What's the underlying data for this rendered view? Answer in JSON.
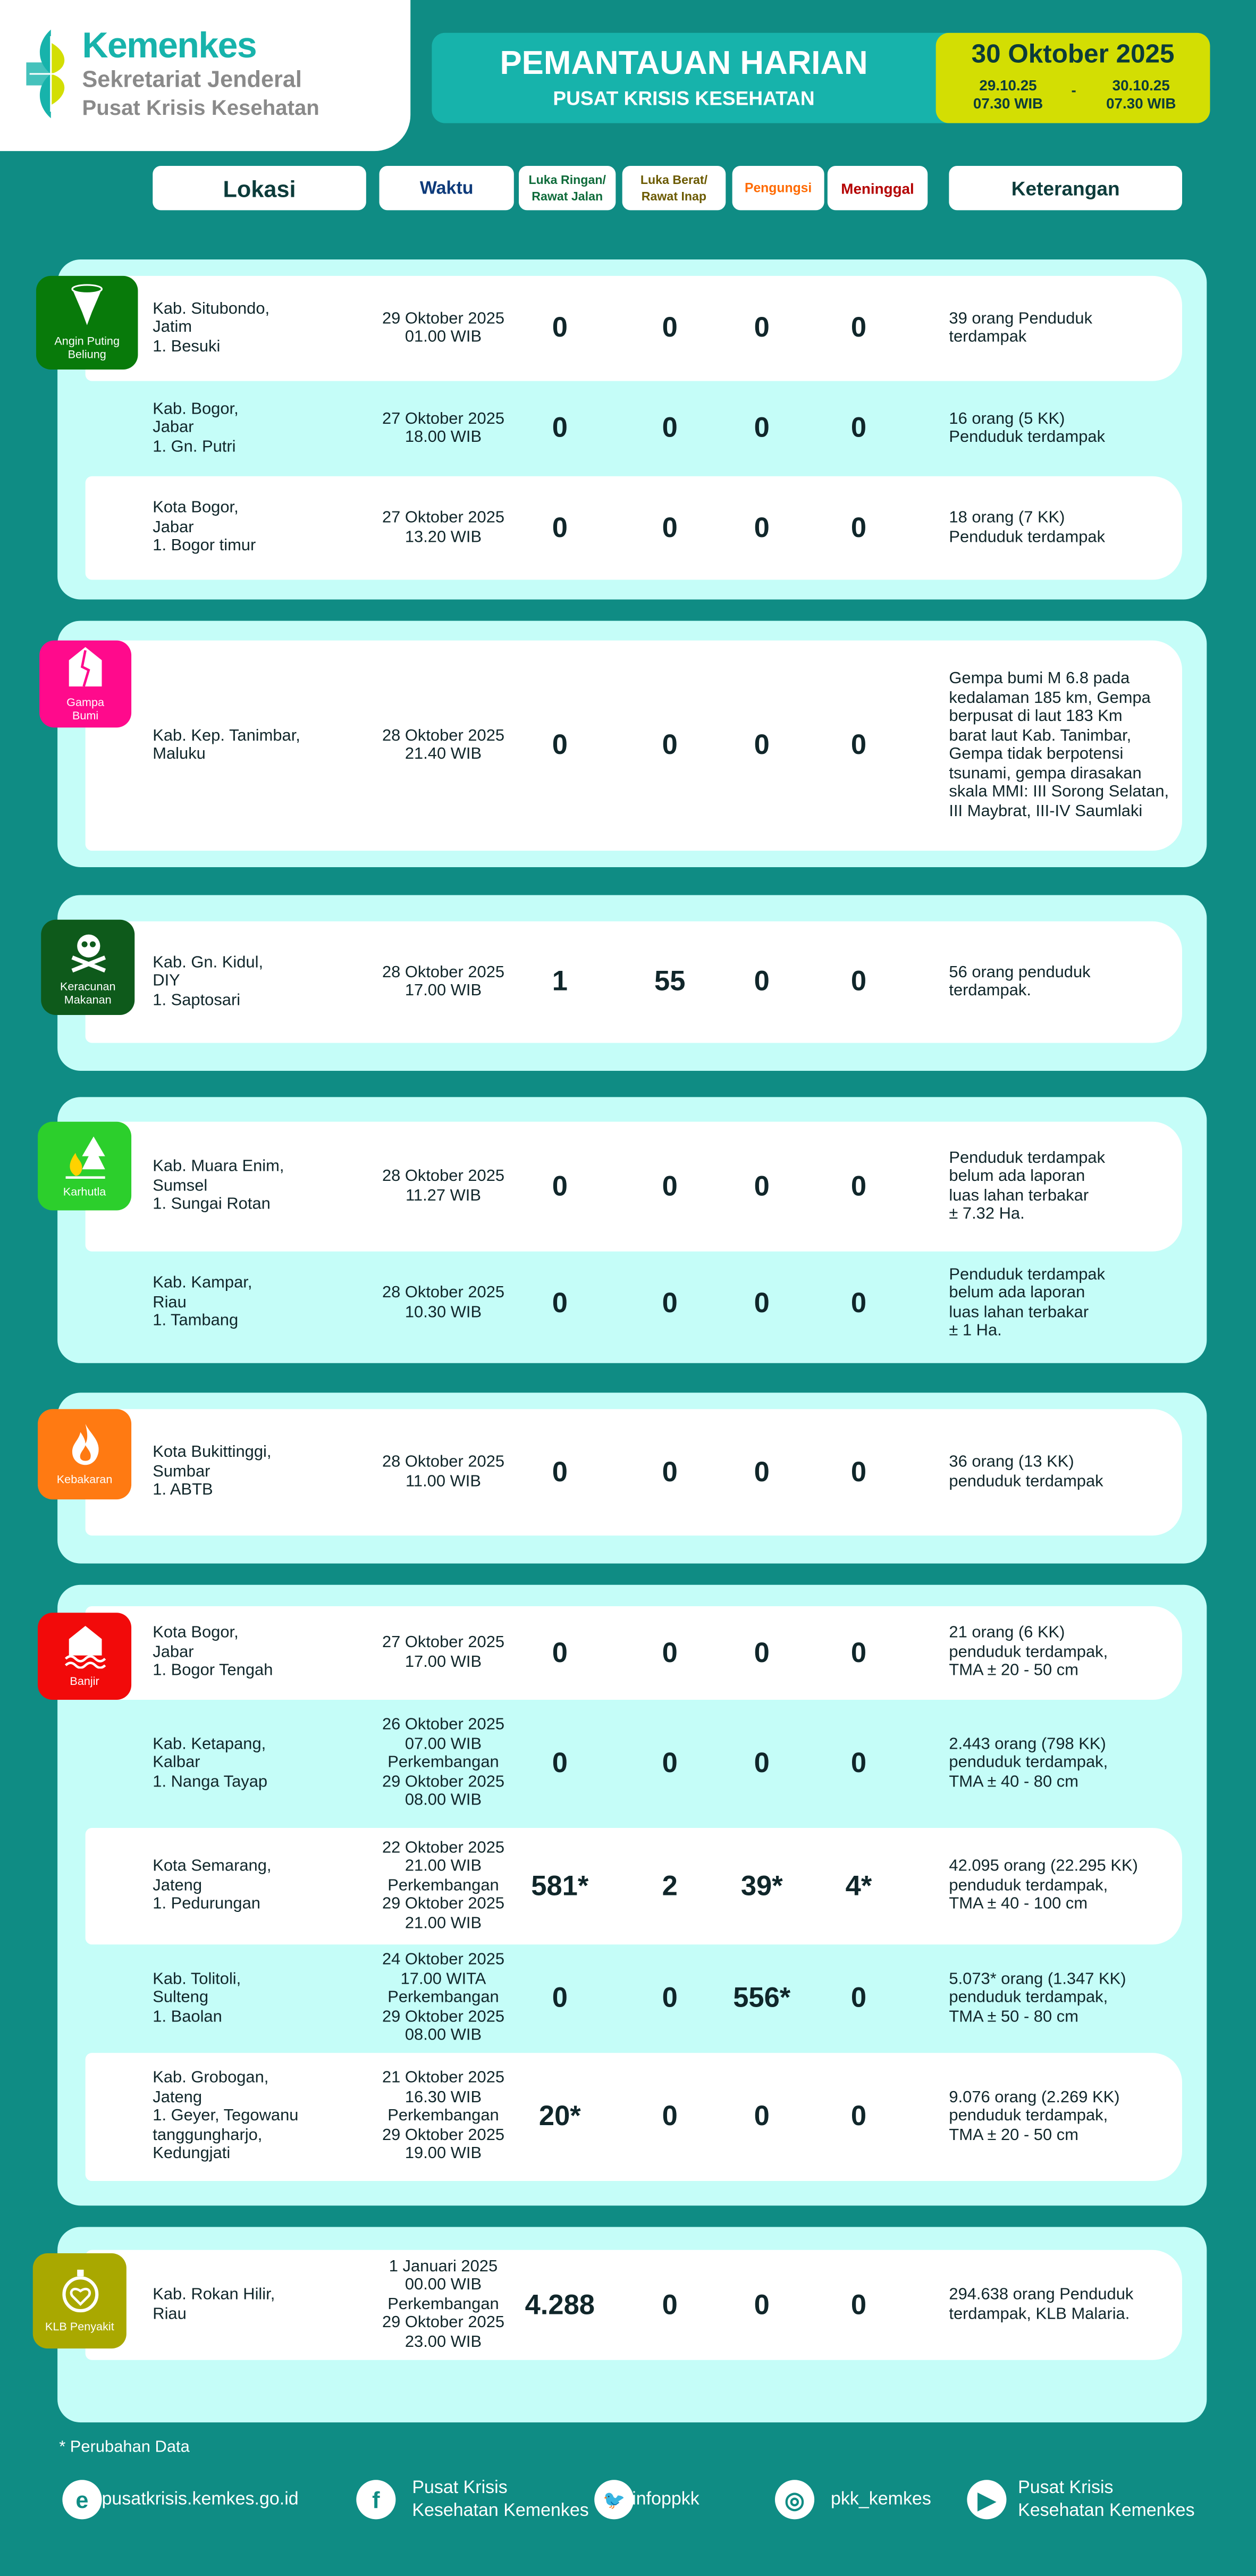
{
  "logo": {
    "name": "Kemenkes",
    "line2": "Sekretariat Jenderal",
    "line3": "Pusat Krisis Kesehatan"
  },
  "banner": {
    "title": "PEMANTAUAN HARIAN",
    "subtitle": "PUSAT KRISIS KESEHATAN",
    "date": "30 Oktober 2025",
    "from": "29.10.25\n07.30 WIB",
    "separator": "-",
    "to": "30.10.25\n07.30 WIB"
  },
  "colors": {
    "background": "#0f8c84",
    "banner": "#17b3ab",
    "date_box": "#d3de03",
    "section": "#c5fdf8"
  },
  "headers": [
    {
      "label": "Lokasi",
      "color": "#0c3b3a"
    },
    {
      "label": "Waktu",
      "color": "#0d3a7a"
    },
    {
      "label": "Luka Ringan/\nRawat Jalan",
      "color": "#0e6b3a"
    },
    {
      "label": "Luka Berat/\nRawat Inap",
      "color": "#6b5a00"
    },
    {
      "label": "Pengungsi",
      "color": "#ff6a00"
    },
    {
      "label": "Meninggal",
      "color": "#b40000"
    },
    {
      "label": "Keterangan",
      "color": "#0c3b3a"
    }
  ],
  "sections": [
    {
      "category": "Angin Puting\nBeliung",
      "icon": "tornado-icon",
      "color": "#087a0a",
      "rows": [
        {
          "lokasi": "Kab. Situbondo,\nJatim\n1. Besuki",
          "waktu": "29 Oktober 2025\n01.00 WIB",
          "luka_ringan": "0",
          "luka_berat": "0",
          "pengungsi": "0",
          "meninggal": "0",
          "keterangan": "39 orang Penduduk\nterdampak"
        },
        {
          "lokasi": "Kab. Bogor,\nJabar\n1. Gn. Putri",
          "waktu": "27 Oktober 2025\n18.00 WIB",
          "luka_ringan": "0",
          "luka_berat": "0",
          "pengungsi": "0",
          "meninggal": "0",
          "keterangan": "16 orang (5 KK)\nPenduduk terdampak"
        },
        {
          "lokasi": "Kota Bogor,\nJabar\n1. Bogor timur",
          "waktu": "27 Oktober 2025\n13.20 WIB",
          "luka_ringan": "0",
          "luka_berat": "0",
          "pengungsi": "0",
          "meninggal": "0",
          "keterangan": "18 orang (7 KK)\nPenduduk terdampak"
        }
      ]
    },
    {
      "category": "Gampa\nBumi",
      "icon": "earthquake-house-icon",
      "color": "#ff0a8c",
      "rows": [
        {
          "lokasi": "Kab. Kep. Tanimbar,\nMaluku",
          "waktu": "28 Oktober 2025\n21.40 WIB",
          "luka_ringan": "0",
          "luka_berat": "0",
          "pengungsi": "0",
          "meninggal": "0",
          "keterangan": "Gempa bumi M 6.8 pada\nkedalaman 185 km, Gempa\nberpusat di laut 183 Km\nbarat laut Kab. Tanimbar,\nGempa tidak berpotensi\ntsunami, gempa dirasakan\nskala MMI: III Sorong Selatan,\nIII Maybrat, III-IV Saumlaki"
        }
      ]
    },
    {
      "category": "Keracunan\nMakanan",
      "icon": "skull-crossbones-icon",
      "color": "#0e5a1b",
      "rows": [
        {
          "lokasi": "Kab. Gn. Kidul,\nDIY\n1. Saptosari",
          "waktu": "28 Oktober 2025\n17.00 WIB",
          "luka_ringan": "1",
          "luka_berat": "55",
          "pengungsi": "0",
          "meninggal": "0",
          "keterangan": "56 orang penduduk\nterdampak."
        }
      ]
    },
    {
      "category": "Karhutla",
      "icon": "forest-fire-icon",
      "color": "#2ccf2c",
      "rows": [
        {
          "lokasi": "Kab. Muara Enim,\nSumsel\n1. Sungai Rotan",
          "waktu": "28 Oktober 2025\n11.27 WIB",
          "luka_ringan": "0",
          "luka_berat": "0",
          "pengungsi": "0",
          "meninggal": "0",
          "keterangan": "Penduduk terdampak\nbelum ada laporan\nluas lahan terbakar\n ± 7.32 Ha."
        },
        {
          "lokasi": "Kab. Kampar,\nRiau\n1. Tambang",
          "waktu": "28 Oktober 2025\n10.30 WIB",
          "luka_ringan": "0",
          "luka_berat": "0",
          "pengungsi": "0",
          "meninggal": "0",
          "keterangan": "Penduduk terdampak\nbelum ada laporan\nluas lahan terbakar\n ± 1 Ha."
        }
      ]
    },
    {
      "category": "Kebakaran",
      "icon": "fire-icon",
      "color": "#ff7a12",
      "rows": [
        {
          "lokasi": "Kota Bukittinggi,\nSumbar\n1. ABTB",
          "waktu": "28 Oktober 2025\n11.00 WIB",
          "luka_ringan": "0",
          "luka_berat": "0",
          "pengungsi": "0",
          "meninggal": "0",
          "keterangan": "36 orang (13 KK)\npenduduk terdampak"
        }
      ]
    },
    {
      "category": "Banjir",
      "icon": "flood-house-icon",
      "color": "#f20a0a",
      "rows": [
        {
          "lokasi": "Kota Bogor,\nJabar\n1. Bogor Tengah",
          "waktu": "27 Oktober 2025\n17.00 WIB",
          "luka_ringan": "0",
          "luka_berat": "0",
          "pengungsi": "0",
          "meninggal": "0",
          "keterangan": "21 orang (6 KK)\npenduduk terdampak,\nTMA ± 20 - 50 cm"
        },
        {
          "lokasi": "Kab. Ketapang,\nKalbar\n1. Nanga Tayap",
          "waktu": "26 Oktober 2025\n07.00 WIB\nPerkembangan\n29 Oktober 2025\n08.00 WIB",
          "luka_ringan": "0",
          "luka_berat": "0",
          "pengungsi": "0",
          "meninggal": "0",
          "keterangan": "2.443 orang (798 KK)\npenduduk terdampak,\nTMA ± 40 - 80 cm"
        },
        {
          "lokasi": "Kota Semarang,\nJateng\n1. Pedurungan",
          "waktu": "22 Oktober 2025\n21.00 WIB\nPerkembangan\n29 Oktober 2025\n21.00 WIB",
          "luka_ringan": "581*",
          "luka_berat": "2",
          "pengungsi": "39*",
          "meninggal": "4*",
          "keterangan": "42.095 orang (22.295 KK)\npenduduk terdampak,\nTMA ± 40 - 100 cm"
        },
        {
          "lokasi": "Kab. Tolitoli,\nSulteng\n1. Baolan",
          "waktu": "24 Oktober 2025\n17.00 WITA\nPerkembangan\n29 Oktober 2025\n08.00 WIB",
          "luka_ringan": "0",
          "luka_berat": "0",
          "pengungsi": "556*",
          "meninggal": "0",
          "keterangan": "5.073* orang (1.347 KK)\npenduduk terdampak,\nTMA ± 50 - 80 cm"
        },
        {
          "lokasi": "Kab. Grobogan,\nJateng\n1. Geyer, Tegowanu\n    tanggungharjo,\n    Kedungjati",
          "waktu": "21 Oktober 2025\n16.30 WIB\nPerkembangan\n29 Oktober 2025\n19.00 WIB",
          "luka_ringan": "20*",
          "luka_berat": "0",
          "pengungsi": "0",
          "meninggal": "0",
          "keterangan": "9.076 orang (2.269 KK)\npenduduk terdampak,\nTMA ± 20 - 50 cm"
        }
      ]
    },
    {
      "category": "KLB Penyakit",
      "icon": "stopwatch-heart-icon",
      "color": "#a9a800",
      "rows": [
        {
          "lokasi": "Kab. Rokan Hilir,\nRiau",
          "waktu": "1 Januari 2025\n00.00 WIB\nPerkembangan\n29 Oktober 2025\n23.00 WIB",
          "luka_ringan": "4.288",
          "luka_berat": "0",
          "pengungsi": "0",
          "meninggal": "0",
          "keterangan": "294.638 orang Penduduk\nterdampak, KLB Malaria."
        }
      ]
    }
  ],
  "footer": {
    "note": "* Perubahan Data",
    "social": [
      {
        "icon": "web-icon",
        "label": "pusatkrisis.kemkes.go.id"
      },
      {
        "icon": "facebook-icon",
        "label": "Pusat Krisis\nKesehatan Kemenkes"
      },
      {
        "icon": "twitter-icon",
        "label": "infoppkk"
      },
      {
        "icon": "instagram-icon",
        "label": "pkk_kemkes"
      },
      {
        "icon": "youtube-icon",
        "label": "Pusat Krisis\nKesehatan Kemenkes"
      }
    ]
  }
}
